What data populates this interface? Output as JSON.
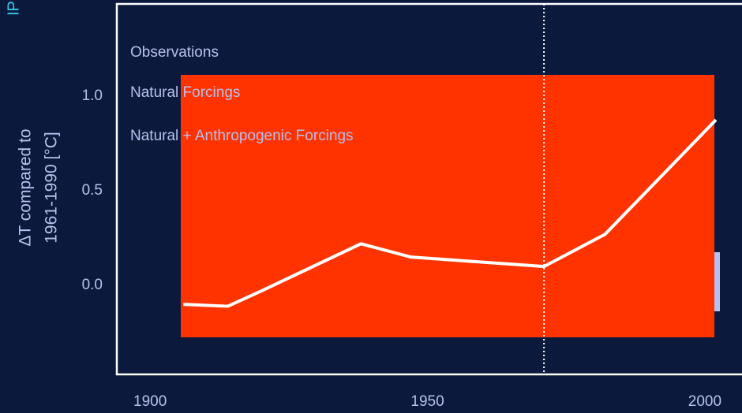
{
  "chart_data": {
    "type": "line",
    "side_label": "IP",
    "ylabel": [
      "ΔT compared to",
      "1961-1990 [°C]"
    ],
    "legend": [
      "Observations",
      "Natural Forcings",
      "Natural + Anthropogenic Forcings"
    ],
    "x": [
      1906,
      1914,
      1920,
      1938,
      1947,
      1971,
      1982,
      2002
    ],
    "series": [
      {
        "color": "#ffffff",
        "values": [
          -0.1,
          -0.11,
          -0.03,
          0.22,
          0.15,
          0.1,
          0.27,
          0.875
        ]
      }
    ],
    "vline": 1971,
    "xlim": [
      1894,
      2006.7
    ],
    "ylim": [
      -0.47,
      1.4875
    ],
    "xticks": [
      1900,
      1950,
      2000
    ],
    "yticks": [
      {
        "value": 1,
        "label": "1.0"
      },
      {
        "value": 0.5,
        "label": "0.5"
      },
      {
        "value": 0,
        "label": "0.0"
      }
    ]
  }
}
